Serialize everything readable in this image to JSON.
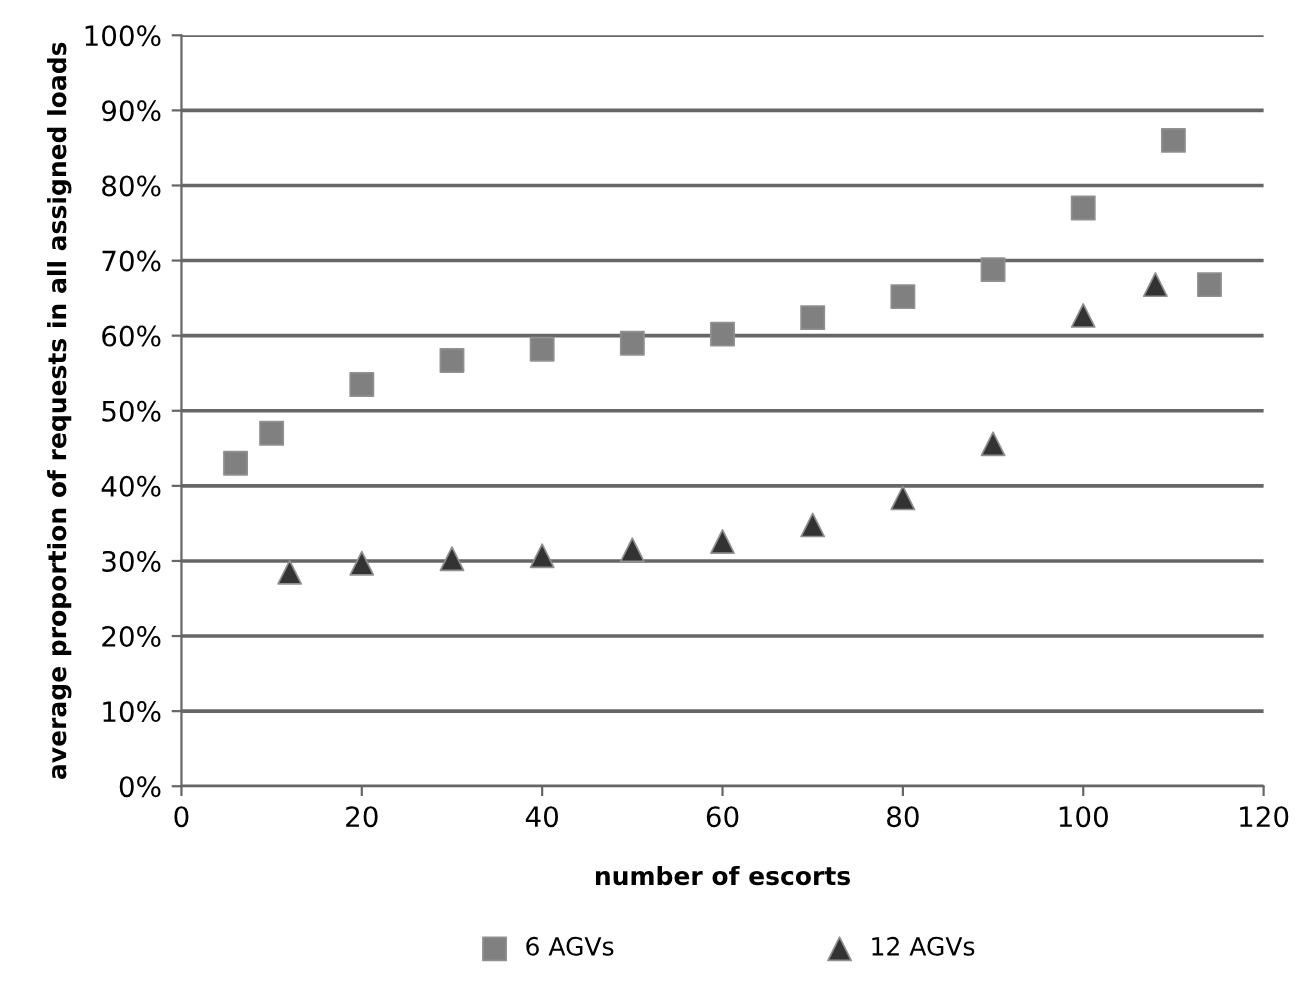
{
  "chart_data": {
    "type": "scatter",
    "xlabel": "number of escorts",
    "ylabel": "average proportion of requests in all assigned loads",
    "xlim": [
      0,
      120
    ],
    "xticks": [
      0,
      20,
      40,
      60,
      80,
      100,
      120
    ],
    "ylim": [
      0,
      100
    ],
    "yticks": [
      {
        "value": 0,
        "label": "0%"
      },
      {
        "value": 10,
        "label": "10%"
      },
      {
        "value": 20,
        "label": "20%"
      },
      {
        "value": 30,
        "label": "30%"
      },
      {
        "value": 40,
        "label": "40%"
      },
      {
        "value": 50,
        "label": "50%"
      },
      {
        "value": 60,
        "label": "60%"
      },
      {
        "value": 70,
        "label": "70%"
      },
      {
        "value": 80,
        "label": "80%"
      },
      {
        "value": 90,
        "label": "90%"
      },
      {
        "value": 100,
        "label": "100%"
      }
    ],
    "grid": "y",
    "legend": "bottom",
    "series": [
      {
        "name": "6 AGVs",
        "color": "#808080",
        "marker": "square",
        "x": [
          6,
          10,
          20,
          30,
          40,
          50,
          60,
          70,
          80,
          90,
          100,
          110,
          114
        ],
        "values": [
          43,
          47,
          53.5,
          56.7,
          58.2,
          59,
          60.2,
          62.4,
          65.2,
          68.8,
          77,
          86,
          66.8
        ]
      },
      {
        "name": "12 AGVs",
        "color": "#333333",
        "marker": "triangle",
        "x": [
          12,
          20,
          30,
          40,
          50,
          60,
          70,
          80,
          90,
          100,
          108
        ],
        "values": [
          28.5,
          29.7,
          30.3,
          30.7,
          31.5,
          32.6,
          34.8,
          38.4,
          45.6,
          62.7,
          66.8
        ]
      }
    ]
  }
}
